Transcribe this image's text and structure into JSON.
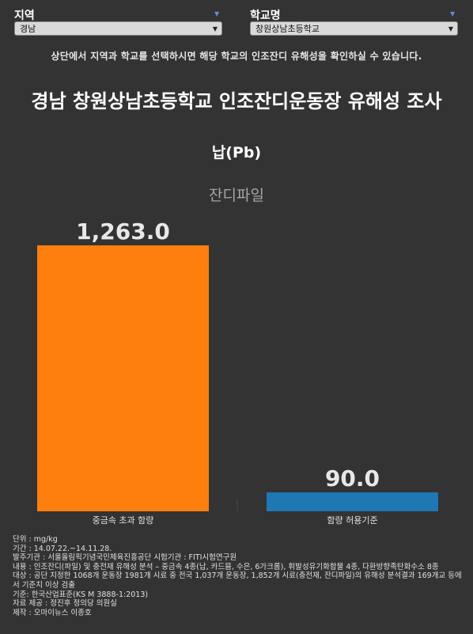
{
  "filters": {
    "region_label": "지역",
    "region_value": "경남",
    "school_label": "학교명",
    "school_value": "창원상남초등학교"
  },
  "notice": "상단에서 지역과 학교를 선택하시면 해당 학교의 인조잔디 유해성을 확인하실 수 있습니다.",
  "colors": {
    "background": "#333333",
    "bar_excess": "#ff7f0e",
    "bar_limit": "#1f77b4"
  },
  "chart_data": {
    "type": "bar",
    "title": "경남 창원상남초등학교 인조잔디운동장 유해성 조사",
    "subtitle": "납(Pb)",
    "series_label": "잔디파일",
    "categories": [
      "중금속 초과 함량",
      "함량 허용기준"
    ],
    "values": [
      1263.0,
      90.0
    ],
    "value_labels": [
      "1,263.0",
      "90.0"
    ],
    "ylim": [
      0,
      1263.0
    ],
    "grid": false
  },
  "meta": [
    "단위 : mg/kg",
    "기간 : 14.07.22.~14.11.28.",
    "발주기관 : 서울올림픽기념국민체육진흥공단  시험기관 : FITI시험연구원",
    "내용 : 인조잔디(파일) 및 충전재 유해성 분석 – 중금속 4종(납, 카드뮴, 수은, 6가크롬), 휘발성유기화합물 4종, 다환방향족탄화수소 8종",
    "대상 : 공단 지정한 1068개 운동장 1981개 시료 중 전국 1,037개 운동장, 1,852개 시료(충전재, 잔디파일)의 유해성 분석결과 169개교 등에서 기준치 이상 검출",
    "기준: 한국산업표준(KS M 3888-1:2013)",
    "자료 제공 : 정진후 정의당 의원실",
    "제작 : 오마이뉴스 이종호"
  ]
}
